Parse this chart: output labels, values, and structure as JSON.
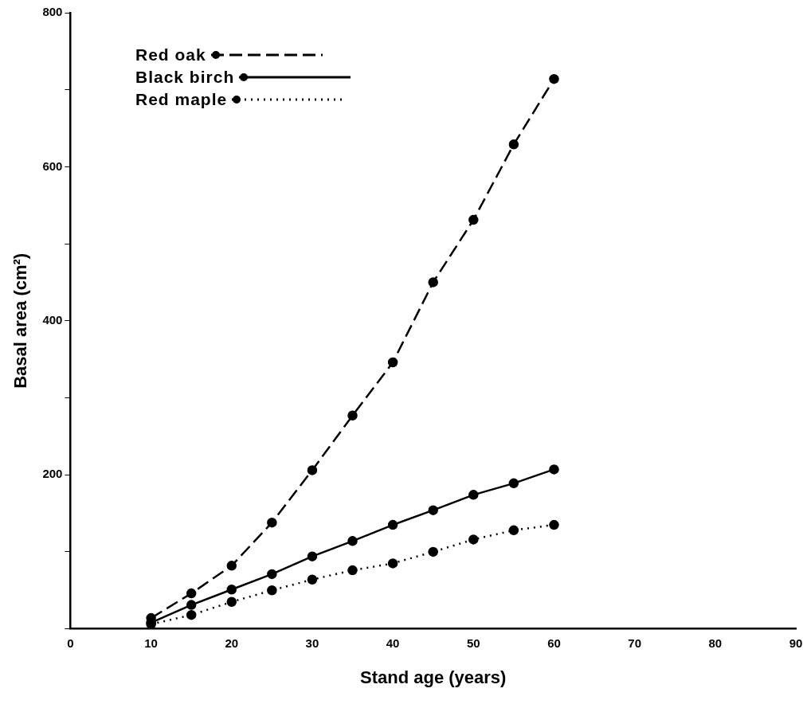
{
  "chart_data": {
    "type": "line",
    "xlabel": "Stand age (years)",
    "ylabel": "Basal area (cm²)",
    "x": [
      10,
      15,
      20,
      25,
      30,
      35,
      40,
      45,
      50,
      55,
      60
    ],
    "series": [
      {
        "name": "Red oak",
        "color": "#000000",
        "line_style": "dashed",
        "values": [
          14,
          46,
          82,
          138,
          206,
          277,
          346,
          450,
          531,
          629,
          714
        ]
      },
      {
        "name": "Black birch",
        "color": "#000000",
        "line_style": "solid",
        "values": [
          8,
          31,
          51,
          71,
          94,
          114,
          135,
          154,
          174,
          189,
          207
        ]
      },
      {
        "name": "Red maple",
        "color": "#000000",
        "line_style": "dotted",
        "values": [
          6,
          18,
          35,
          50,
          64,
          76,
          85,
          100,
          116,
          128,
          135
        ]
      }
    ],
    "xlim": [
      0,
      90
    ],
    "xticks": [
      0,
      10,
      20,
      30,
      40,
      50,
      60,
      70,
      80,
      90
    ],
    "ylim": [
      0,
      800
    ],
    "yticks": [
      {
        "value": 0,
        "label": null
      },
      {
        "value": 100,
        "label": null
      },
      200,
      {
        "value": 300,
        "label": null
      },
      400,
      {
        "value": 500,
        "label": null
      },
      600,
      {
        "value": 700,
        "label": null
      },
      800
    ],
    "grid": false,
    "legend": "top left",
    "marker": "circle"
  }
}
